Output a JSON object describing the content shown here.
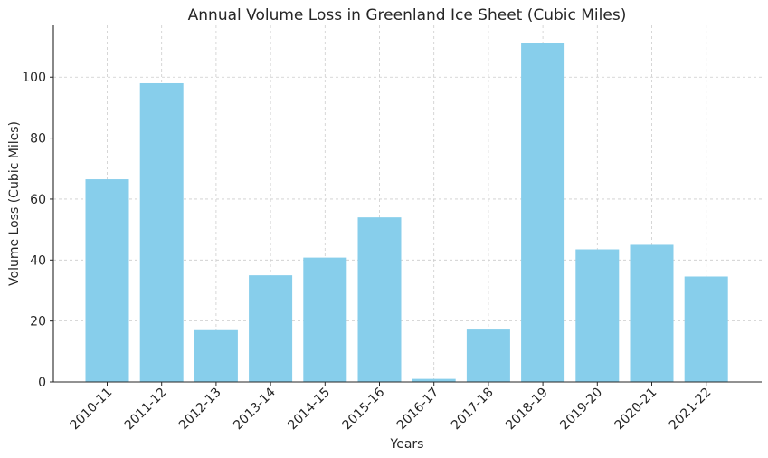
{
  "chart_data": {
    "type": "bar",
    "title": "Annual Volume Loss in Greenland Ice Sheet (Cubic Miles)",
    "xlabel": "Years",
    "ylabel": "Volume Loss (Cubic Miles)",
    "categories": [
      "2010-11",
      "2011-12",
      "2012-13",
      "2013-14",
      "2014-15",
      "2015-16",
      "2016-17",
      "2017-18",
      "2018-19",
      "2019-20",
      "2020-21",
      "2021-22"
    ],
    "values": [
      66.5,
      98,
      17,
      35,
      40.8,
      54,
      1,
      17.2,
      111.3,
      43.5,
      45,
      34.6
    ],
    "ylim": [
      0,
      117
    ],
    "yticks": [
      0,
      20,
      40,
      60,
      80,
      100
    ],
    "grid": true,
    "bar_color": "#87ceeb"
  }
}
